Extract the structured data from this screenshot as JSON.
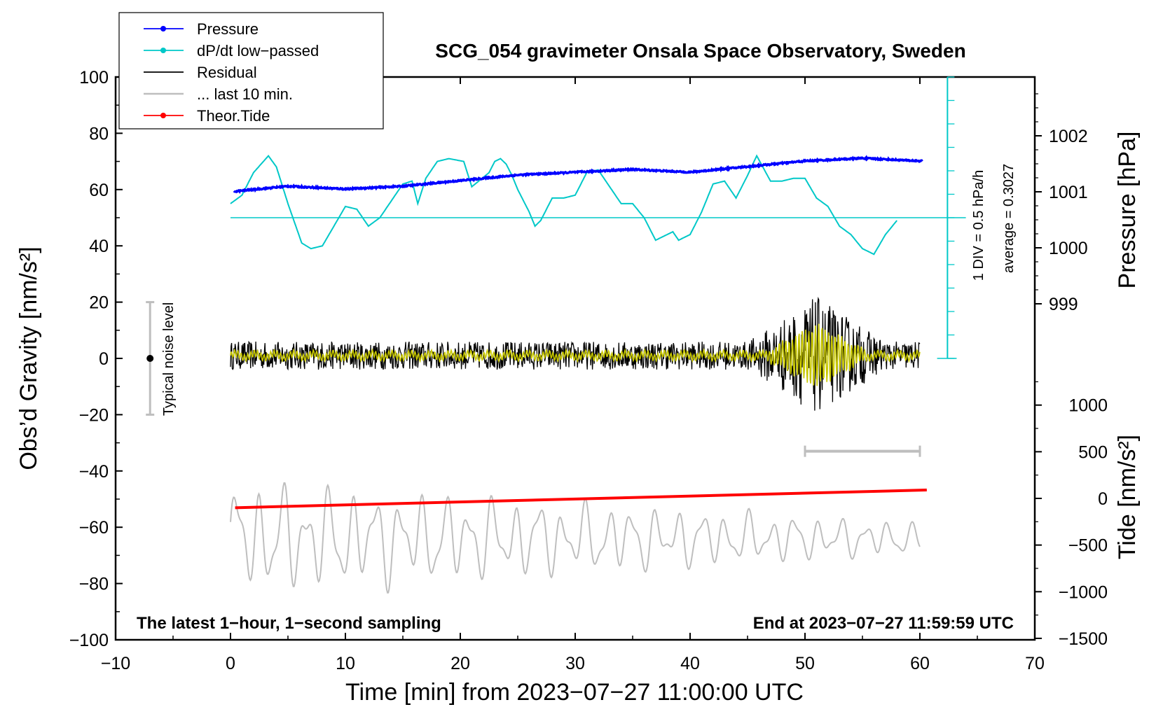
{
  "chart_data": {
    "type": "line",
    "title": "SCG_054 gravimeter Onsala Space Observatory, Sweden",
    "xlabel": "Time [min] from 2023−07−27 11:00:00 UTC",
    "ylabel_left": "Obs’d Gravity [nm/s²]",
    "ylabel_right_top": "Pressure [hPa]",
    "ylabel_right_bottom": "Tide [nm/s²]",
    "xlim": [
      -10,
      70
    ],
    "ylim_left": [
      -100,
      100
    ],
    "x_ticks": [
      "−10",
      "0",
      "10",
      "20",
      "30",
      "40",
      "50",
      "60",
      "70"
    ],
    "y_left_ticks": [
      "100",
      "80",
      "60",
      "40",
      "20",
      "0",
      "−20",
      "−40",
      "−60",
      "−80",
      "−100"
    ],
    "pressure_ticks": [
      "1002",
      "1001",
      "1000",
      "999"
    ],
    "tide_ticks": [
      "1000",
      "500",
      "0",
      "−500",
      "−1000",
      "−1500"
    ],
    "legend": [
      {
        "label": "Pressure",
        "color": "#0000ff",
        "marker": true
      },
      {
        "label": "dP/dt low−passed",
        "color": "#00c8c8",
        "marker": true
      },
      {
        "label": "Residual",
        "color": "#000000",
        "marker": false
      },
      {
        "label": "... last 10 min.",
        "color": "#bebebe",
        "marker": false
      },
      {
        "label": "Theor.Tide",
        "color": "#ff0000",
        "marker": true
      }
    ],
    "annotations": {
      "noise": "Typical noise level",
      "div": "1 DIV = 0.5 hPa/h",
      "average": "average = 0.3027",
      "footer_left": "The latest 1−hour, 1−second sampling",
      "footer_right": "End at 2023−07−27 11:59:59 UTC"
    },
    "series": [
      {
        "name": "Pressure",
        "color": "#0000ff",
        "axis": "pressure_hPa",
        "x": [
          0,
          5,
          10,
          15,
          20,
          25,
          30,
          35,
          40,
          45,
          50,
          55,
          60
        ],
        "values": [
          1001.0,
          1001.1,
          1001.05,
          1001.1,
          1001.2,
          1001.3,
          1001.35,
          1001.4,
          1001.35,
          1001.45,
          1001.55,
          1001.6,
          1001.55
        ]
      },
      {
        "name": "dP/dt low-passed",
        "color": "#00c8c8",
        "axis": "left_nm_s2",
        "x": [
          0,
          1,
          2,
          3.3,
          4,
          5,
          6.2,
          7,
          8,
          9,
          10,
          11,
          12,
          13,
          14,
          15,
          15.8,
          16.3,
          17,
          18,
          19,
          20.3,
          21,
          22.5,
          23,
          23.5,
          24,
          24.5,
          25,
          26,
          26.5,
          27,
          28,
          29,
          30,
          31,
          32,
          33,
          34,
          35,
          36,
          37,
          38.5,
          39,
          40,
          41,
          42,
          43,
          44,
          45,
          45.8,
          47,
          48,
          49,
          50,
          51,
          52,
          53,
          54,
          55,
          56,
          57,
          58
        ],
        "values": [
          55,
          58,
          66,
          72,
          68,
          55,
          41,
          39,
          40,
          47,
          54,
          53,
          47,
          50,
          56,
          62,
          63,
          55,
          64,
          70,
          71,
          70,
          61,
          66,
          70,
          71,
          69,
          65,
          60,
          52,
          47,
          49,
          57,
          57,
          58,
          66,
          67,
          61,
          55,
          55,
          50,
          42,
          45,
          42,
          44,
          52,
          62,
          63,
          57,
          65,
          72,
          63,
          63,
          64,
          64,
          57,
          54,
          47,
          44,
          39,
          37,
          44,
          49
        ]
      },
      {
        "name": "Residual",
        "color": "#000000",
        "axis": "left_nm_s2",
        "x_range": [
          0,
          60
        ],
        "noise_amplitude": 5,
        "burst_window": [
          45,
          57
        ],
        "burst_amplitude": 16
      },
      {
        "name": "Residual (smoothed)",
        "color": "#c8c800",
        "axis": "left_nm_s2",
        "x_range": [
          0,
          60
        ],
        "burst_amplitude": 10
      },
      {
        "name": "... last 10 min.",
        "color": "#bebebe",
        "axis": "left_nm_s2",
        "x_range": [
          0,
          60
        ],
        "center": -64,
        "amplitude_start": 18,
        "amplitude_end": 5,
        "range_bar": [
          50,
          60
        ]
      },
      {
        "name": "Theor.Tide",
        "color": "#ff0000",
        "axis": "tide_nm_s2",
        "x": [
          0,
          60
        ],
        "values": [
          -100,
          90
        ]
      }
    ],
    "pressure_reference": 1000.4,
    "noise_bar": {
      "x": -7,
      "y_range": [
        -20,
        20
      ]
    }
  }
}
